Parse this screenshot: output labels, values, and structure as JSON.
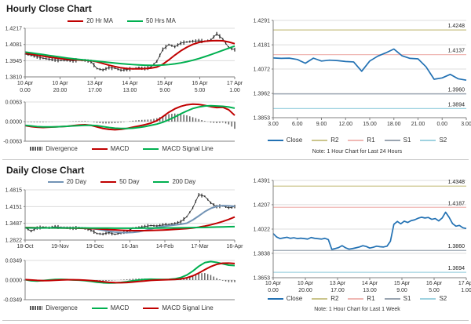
{
  "chart_data": [
    {
      "name": "hourly_left",
      "title": "Hourly Close Chart",
      "type": "candlestick",
      "price": {
        "y_ticks": [
          1.4217,
          1.4081,
          1.3945,
          1.381
        ],
        "x_ticks": [
          [
            "10 Apr",
            "0.00"
          ],
          [
            "10 Apr",
            "20.00"
          ],
          [
            "13 Apr",
            "17.00"
          ],
          [
            "14 Apr",
            "13.00"
          ],
          [
            "15 Apr",
            "9.00"
          ],
          [
            "16 Apr",
            "5.00"
          ],
          [
            "17 Apr",
            "1.00"
          ]
        ],
        "series": [
          {
            "name": "Close",
            "type": "candle",
            "color": "#262626",
            "in_legend": false,
            "values": [
              1.4,
              1.3992,
              1.3978,
              1.3966,
              1.3958,
              1.3952,
              1.3948,
              1.395,
              1.3945,
              1.3952,
              1.3948,
              1.3938,
              1.388,
              1.3868,
              1.3888,
              1.3882,
              1.3866,
              1.3872,
              1.3878,
              1.3885,
              1.388,
              1.3892,
              1.394,
              1.404,
              1.408,
              1.4062,
              1.4092,
              1.4102,
              1.4108,
              1.4112,
              1.4108,
              1.4118,
              1.417,
              1.4128,
              1.4055,
              1.4038
            ]
          },
          {
            "name": "20 Hr MA",
            "type": "line",
            "color": "#C00000",
            "in_legend": true,
            "values": [
              1.4008,
              1.4,
              1.3992,
              1.3984,
              1.3976,
              1.3969,
              1.3963,
              1.3958,
              1.3954,
              1.3951,
              1.3949,
              1.3945,
              1.3936,
              1.3922,
              1.3908,
              1.3896,
              1.3886,
              1.388,
              1.3877,
              1.3877,
              1.3879,
              1.3883,
              1.3892,
              1.3916,
              1.3952,
              1.3992,
              1.4028,
              1.4058,
              1.4082,
              1.4098,
              1.4108,
              1.4112,
              1.4114,
              1.4112,
              1.4102,
              1.4088
            ]
          },
          {
            "name": "50 Hrs MA",
            "type": "line",
            "color": "#00B050",
            "in_legend": true,
            "values": [
              1.4018,
              1.4011,
              1.4004,
              1.3997,
              1.3989,
              1.3982,
              1.3975,
              1.3968,
              1.3962,
              1.3956,
              1.3951,
              1.3946,
              1.3941,
              1.3936,
              1.3931,
              1.3926,
              1.3921,
              1.3917,
              1.3913,
              1.391,
              1.3908,
              1.3907,
              1.3907,
              1.3909,
              1.3913,
              1.3919,
              1.3927,
              1.3937,
              1.3949,
              1.3963,
              1.3979,
              1.3996,
              1.4014,
              1.4032,
              1.405,
              1.4068
            ]
          }
        ]
      },
      "macd": {
        "y_ticks": [
          0.0063,
          0,
          -0.0063
        ],
        "series": [
          {
            "name": "Divergence",
            "type": "bar",
            "color": "#595959",
            "values": [
              -0.0001,
              -0.0002,
              -0.0002,
              -0.0002,
              -0.0001,
              0.0,
              0.0,
              0.0,
              0.0001,
              0.0002,
              0.0002,
              0.0,
              -0.0004,
              -0.0006,
              -0.0006,
              -0.0005,
              -0.0003,
              0.0,
              0.0003,
              0.0005,
              0.0006,
              0.0007,
              0.0011,
              0.0018,
              0.0024,
              0.0026,
              0.0024,
              0.002,
              0.0014,
              0.0008,
              0.0002,
              -0.0003,
              -0.0005,
              -0.0003,
              -0.0009,
              -0.0023
            ]
          },
          {
            "name": "MACD",
            "type": "line",
            "color": "#C00000",
            "values": [
              -0.0013,
              -0.0016,
              -0.0018,
              -0.0019,
              -0.0018,
              -0.0017,
              -0.0016,
              -0.0015,
              -0.0013,
              -0.0011,
              -0.001,
              -0.0012,
              -0.0017,
              -0.0022,
              -0.0025,
              -0.0026,
              -0.0025,
              -0.0022,
              -0.0018,
              -0.0014,
              -0.001,
              -0.0005,
              0.0003,
              0.0016,
              0.003,
              0.0041,
              0.0049,
              0.0054,
              0.0056,
              0.0055,
              0.0052,
              0.0048,
              0.0045,
              0.0046,
              0.0038,
              0.002
            ]
          },
          {
            "name": "MACD Signal Line",
            "type": "line",
            "color": "#00B050",
            "values": [
              -0.0012,
              -0.0014,
              -0.0016,
              -0.0017,
              -0.0017,
              -0.0017,
              -0.0016,
              -0.0015,
              -0.0014,
              -0.0013,
              -0.0012,
              -0.0012,
              -0.0013,
              -0.0016,
              -0.0019,
              -0.0021,
              -0.0022,
              -0.0022,
              -0.0021,
              -0.0019,
              -0.0016,
              -0.0012,
              -0.0008,
              -0.0002,
              0.0006,
              0.0015,
              0.0025,
              0.0034,
              0.0042,
              0.0047,
              0.005,
              0.0051,
              0.005,
              0.0049,
              0.0047,
              0.0043
            ]
          }
        ]
      }
    },
    {
      "name": "hourly_right",
      "type": "line",
      "y_ticks": [
        1.4291,
        1.4181,
        1.4072,
        1.3962,
        1.3853
      ],
      "x_ticks": [
        "3.00",
        "6.00",
        "9.00",
        "12.00",
        "15.00",
        "18.00",
        "21.00",
        "0.00",
        "3.00"
      ],
      "series": [
        {
          "name": "Close",
          "type": "line",
          "color": "#2271B3",
          "values": [
            1.4122,
            1.412,
            1.4121,
            1.4115,
            1.4098,
            1.4121,
            1.4108,
            1.4112,
            1.411,
            1.4106,
            1.4104,
            1.4062,
            1.4108,
            1.413,
            1.4145,
            1.4162,
            1.4132,
            1.412,
            1.4118,
            1.4082,
            1.4026,
            1.4032,
            1.4048,
            1.4028,
            1.4022
          ]
        }
      ],
      "pivots": [
        {
          "name": "R2",
          "value": 1.4248,
          "color": "#CBC58C"
        },
        {
          "name": "R1",
          "value": 1.4137,
          "color": "#F0B8B4"
        },
        {
          "name": "S1",
          "value": 1.396,
          "color": "#9AA5B1"
        },
        {
          "name": "S2",
          "value": 1.3894,
          "color": "#9FD2E0"
        }
      ],
      "note": "Note: 1 Hour Chart for Last 24 Hours"
    },
    {
      "name": "daily_left",
      "title": "Daily Close Chart",
      "type": "candlestick",
      "price": {
        "y_ticks": [
          1.4815,
          1.4151,
          1.3487,
          1.2822
        ],
        "x_ticks": [
          "18-Oct",
          "19-Nov",
          "19-Dec",
          "16-Jan",
          "14-Feb",
          "17-Mar",
          "16-Apr"
        ],
        "series": [
          {
            "name": "Close",
            "type": "candle",
            "color": "#262626",
            "in_legend": false,
            "values": [
              1.331,
              1.318,
              1.33,
              1.334,
              1.331,
              1.335,
              1.333,
              1.331,
              1.329,
              1.332,
              1.328,
              1.322,
              1.308,
              1.306,
              1.312,
              1.305,
              1.31,
              1.315,
              1.33,
              1.332,
              1.336,
              1.34,
              1.338,
              1.342,
              1.344,
              1.348,
              1.355,
              1.375,
              1.41,
              1.462,
              1.456,
              1.43,
              1.415,
              1.418,
              1.41,
              1.4151
            ]
          },
          {
            "name": "20 Day",
            "type": "line",
            "color": "#7293B5",
            "in_legend": true,
            "values": [
              1.331,
              1.33,
              1.3296,
              1.33,
              1.3305,
              1.331,
              1.3312,
              1.331,
              1.3305,
              1.33,
              1.3294,
              1.328,
              1.3252,
              1.3212,
              1.3172,
              1.3142,
              1.3122,
              1.3116,
              1.3126,
              1.3152,
              1.3202,
              1.3262,
              1.3322,
              1.3362,
              1.3392,
              1.342,
              1.345,
              1.3492,
              1.362,
              1.378,
              1.395,
              1.408,
              1.416,
              1.419,
              1.418,
              1.416
            ]
          },
          {
            "name": "50 Day",
            "type": "line",
            "color": "#C00000",
            "in_legend": true,
            "values": [
              1.332,
              1.3315,
              1.331,
              1.3308,
              1.3305,
              1.3302,
              1.33,
              1.3298,
              1.3295,
              1.329,
              1.3285,
              1.3278,
              1.3268,
              1.3255,
              1.324,
              1.3225,
              1.3212,
              1.3202,
              1.3196,
              1.3194,
              1.3196,
              1.3202,
              1.321,
              1.322,
              1.3232,
              1.3245,
              1.326,
              1.3278,
              1.3302,
              1.3334,
              1.3376,
              1.3428,
              1.349,
              1.356,
              1.364,
              1.374
            ]
          },
          {
            "name": "200 Day",
            "type": "line",
            "color": "#00B050",
            "in_legend": true,
            "values": [
              1.331,
              1.3308,
              1.3306,
              1.3305,
              1.3304,
              1.3303,
              1.3302,
              1.3301,
              1.33,
              1.33,
              1.3299,
              1.3298,
              1.3297,
              1.3296,
              1.3295,
              1.3294,
              1.3293,
              1.3293,
              1.3293,
              1.3294,
              1.3295,
              1.3296,
              1.3298,
              1.33,
              1.3302,
              1.3305,
              1.3308,
              1.3312,
              1.3316,
              1.3321,
              1.3326,
              1.3332,
              1.3338,
              1.3344,
              1.335,
              1.3356
            ]
          }
        ]
      },
      "macd": {
        "y_ticks": [
          0.0349,
          0,
          -0.0349
        ],
        "series": [
          {
            "name": "Divergence",
            "type": "bar",
            "color": "#595959",
            "values": [
              -0.0002,
              -0.0014,
              -0.0012,
              0.0002,
              0.001,
              0.0013,
              0.001,
              0.0003,
              -0.0003,
              -0.0005,
              -0.0009,
              -0.0014,
              -0.002,
              -0.0018,
              -0.0012,
              -0.0004,
              0.0005,
              0.0013,
              0.0023,
              0.0027,
              0.0027,
              0.0022,
              0.0013,
              0.0006,
              0.0005,
              0.0011,
              0.0025,
              0.005,
              0.0085,
              0.012,
              0.0125,
              0.009,
              0.0035,
              -0.001,
              -0.0037,
              -0.0037
            ]
          },
          {
            "name": "MACD",
            "type": "line",
            "color": "#00B050",
            "values": [
              0.0006,
              -0.0012,
              -0.0018,
              -0.0008,
              0.0002,
              0.001,
              0.0012,
              0.0008,
              0.0002,
              -0.0002,
              -0.001,
              -0.0022,
              -0.0038,
              -0.0048,
              -0.0052,
              -0.005,
              -0.0042,
              -0.003,
              -0.0012,
              0.0002,
              0.0012,
              0.0016,
              0.0013,
              0.001,
              0.0012,
              0.0022,
              0.0045,
              0.009,
              0.016,
              0.0245,
              0.031,
              0.033,
              0.0315,
              0.029,
              0.0265,
              0.0258
            ]
          },
          {
            "name": "MACD Signal Line",
            "type": "line",
            "color": "#C00000",
            "values": [
              0.0008,
              0.0002,
              -0.0006,
              -0.001,
              -0.0008,
              -0.0003,
              0.0002,
              0.0005,
              0.0005,
              0.0003,
              -0.0001,
              -0.0008,
              -0.0018,
              -0.003,
              -0.004,
              -0.0046,
              -0.0047,
              -0.0043,
              -0.0035,
              -0.0025,
              -0.0015,
              -0.0006,
              0.0,
              0.0004,
              0.0007,
              0.0011,
              0.002,
              0.004,
              0.0075,
              0.0125,
              0.0185,
              0.024,
              0.028,
              0.03,
              0.0302,
              0.0295
            ]
          }
        ]
      }
    },
    {
      "name": "daily_right",
      "type": "line",
      "y_ticks": [
        1.4391,
        1.4207,
        1.4022,
        1.3838,
        1.3653
      ],
      "x_ticks": [
        [
          "10 Apr",
          "0.00"
        ],
        [
          "10 Apr",
          "20.00"
        ],
        [
          "13 Apr",
          "17.00"
        ],
        [
          "14 Apr",
          "13.00"
        ],
        [
          "15 Apr",
          "9.00"
        ],
        [
          "16 Apr",
          "5.00"
        ],
        [
          "17 Apr",
          "1.00"
        ]
      ],
      "series": [
        {
          "name": "Close",
          "type": "line",
          "color": "#2271B3",
          "values": [
            1.3988,
            1.3962,
            1.395,
            1.3955,
            1.396,
            1.3952,
            1.3956,
            1.395,
            1.3953,
            1.395,
            1.3946,
            1.3958,
            1.3952,
            1.3949,
            1.3946,
            1.3952,
            1.3942,
            1.3868,
            1.3874,
            1.3882,
            1.3896,
            1.388,
            1.387,
            1.3874,
            1.388,
            1.3886,
            1.3896,
            1.389,
            1.3878,
            1.3884,
            1.3892,
            1.3888,
            1.3886,
            1.3892,
            1.393,
            1.4058,
            1.408,
            1.4062,
            1.4082,
            1.4072,
            1.4086,
            1.4092,
            1.4104,
            1.4112,
            1.4106,
            1.411,
            1.4096,
            1.4102,
            1.4084,
            1.4106,
            1.415,
            1.4112,
            1.4064,
            1.4044,
            1.405,
            1.4032,
            1.4026
          ]
        }
      ],
      "pivots": [
        {
          "name": "R2",
          "value": 1.4348,
          "color": "#CBC58C"
        },
        {
          "name": "R1",
          "value": 1.4187,
          "color": "#F0B8B4"
        },
        {
          "name": "S1",
          "value": 1.386,
          "color": "#9AA5B1"
        },
        {
          "name": "S2",
          "value": 1.3694,
          "color": "#9FD2E0"
        }
      ],
      "note": "Note: 1 Hour Chart for  Last 1 Week"
    }
  ]
}
